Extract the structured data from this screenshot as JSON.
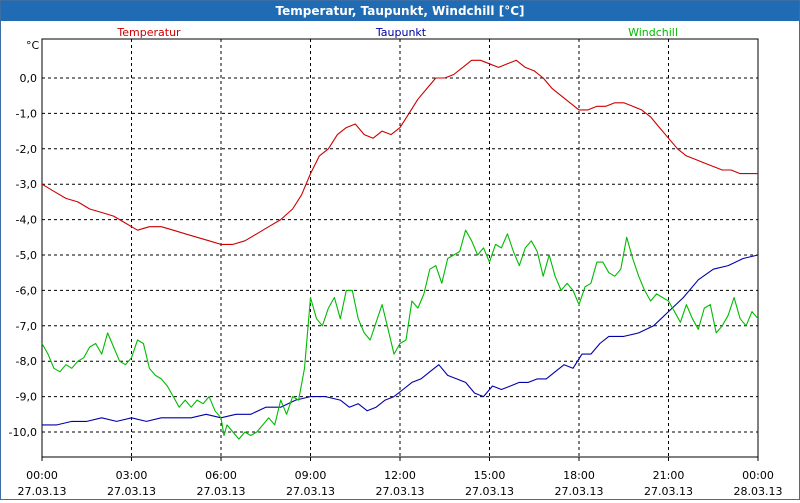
{
  "window": {
    "title": "Temperatur, Taupunkt, Windchill [°C]"
  },
  "colors": {
    "titlebar": "#1f6bb4",
    "temperatur": "#cc0000",
    "taupunkt": "#0000aa",
    "windchill": "#00bb00",
    "grid": "#000000",
    "axis_text": "#000000"
  },
  "chart_data": {
    "type": "line",
    "title": "Temperatur, Taupunkt, Windchill [°C]",
    "ylabel": "°C",
    "ylim": [
      -10.5,
      1.0
    ],
    "xlim": [
      0,
      24
    ],
    "grid": true,
    "y_ticks": [
      0,
      -1,
      -2,
      -3,
      -4,
      -5,
      -6,
      -7,
      -8,
      -9,
      -10
    ],
    "y_tick_labels": [
      "0,0",
      "-1,0",
      "-2,0",
      "-3,0",
      "-4,0",
      "-5,0",
      "-6,0",
      "-7,0",
      "-8,0",
      "-9,0",
      "-10,0"
    ],
    "x_ticks": [
      0,
      3,
      6,
      9,
      12,
      15,
      18,
      21,
      24
    ],
    "x_tick_labels": [
      [
        "00:00",
        "27.03.13"
      ],
      [
        "03:00",
        "27.03.13"
      ],
      [
        "06:00",
        "27.03.13"
      ],
      [
        "09:00",
        "27.03.13"
      ],
      [
        "12:00",
        "27.03.13"
      ],
      [
        "15:00",
        "27.03.13"
      ],
      [
        "18:00",
        "27.03.13"
      ],
      [
        "21:00",
        "27.03.13"
      ],
      [
        "00:00",
        "28.03.13"
      ]
    ],
    "series": [
      {
        "name": "Temperatur",
        "color": "#cc0000",
        "legend_position": "left",
        "points": [
          [
            0.0,
            -3.0
          ],
          [
            0.4,
            -3.2
          ],
          [
            0.8,
            -3.4
          ],
          [
            1.2,
            -3.5
          ],
          [
            1.6,
            -3.7
          ],
          [
            2.0,
            -3.8
          ],
          [
            2.4,
            -3.9
          ],
          [
            2.8,
            -4.1
          ],
          [
            3.2,
            -4.3
          ],
          [
            3.6,
            -4.2
          ],
          [
            4.0,
            -4.2
          ],
          [
            4.4,
            -4.3
          ],
          [
            4.8,
            -4.4
          ],
          [
            5.2,
            -4.5
          ],
          [
            5.6,
            -4.6
          ],
          [
            6.0,
            -4.7
          ],
          [
            6.4,
            -4.7
          ],
          [
            6.8,
            -4.6
          ],
          [
            7.2,
            -4.4
          ],
          [
            7.6,
            -4.2
          ],
          [
            8.0,
            -4.0
          ],
          [
            8.4,
            -3.7
          ],
          [
            8.7,
            -3.3
          ],
          [
            9.0,
            -2.7
          ],
          [
            9.3,
            -2.2
          ],
          [
            9.6,
            -2.0
          ],
          [
            9.9,
            -1.6
          ],
          [
            10.2,
            -1.4
          ],
          [
            10.5,
            -1.3
          ],
          [
            10.8,
            -1.6
          ],
          [
            11.1,
            -1.7
          ],
          [
            11.4,
            -1.5
          ],
          [
            11.7,
            -1.6
          ],
          [
            12.0,
            -1.4
          ],
          [
            12.3,
            -1.0
          ],
          [
            12.6,
            -0.6
          ],
          [
            12.9,
            -0.3
          ],
          [
            13.2,
            0.0
          ],
          [
            13.5,
            0.0
          ],
          [
            13.8,
            0.1
          ],
          [
            14.1,
            0.3
          ],
          [
            14.4,
            0.5
          ],
          [
            14.7,
            0.5
          ],
          [
            15.0,
            0.4
          ],
          [
            15.3,
            0.3
          ],
          [
            15.6,
            0.4
          ],
          [
            15.9,
            0.5
          ],
          [
            16.2,
            0.3
          ],
          [
            16.5,
            0.2
          ],
          [
            16.8,
            0.0
          ],
          [
            17.1,
            -0.3
          ],
          [
            17.4,
            -0.5
          ],
          [
            17.7,
            -0.7
          ],
          [
            18.0,
            -0.9
          ],
          [
            18.3,
            -0.9
          ],
          [
            18.6,
            -0.8
          ],
          [
            18.9,
            -0.8
          ],
          [
            19.2,
            -0.7
          ],
          [
            19.5,
            -0.7
          ],
          [
            19.8,
            -0.8
          ],
          [
            20.1,
            -0.9
          ],
          [
            20.4,
            -1.1
          ],
          [
            20.7,
            -1.4
          ],
          [
            21.0,
            -1.7
          ],
          [
            21.3,
            -2.0
          ],
          [
            21.6,
            -2.2
          ],
          [
            21.9,
            -2.3
          ],
          [
            22.2,
            -2.4
          ],
          [
            22.5,
            -2.5
          ],
          [
            22.8,
            -2.6
          ],
          [
            23.1,
            -2.6
          ],
          [
            23.4,
            -2.7
          ],
          [
            23.7,
            -2.7
          ],
          [
            24.0,
            -2.7
          ]
        ]
      },
      {
        "name": "Taupunkt",
        "color": "#0000aa",
        "legend_position": "center",
        "points": [
          [
            0.0,
            -9.8
          ],
          [
            0.5,
            -9.8
          ],
          [
            1.0,
            -9.7
          ],
          [
            1.5,
            -9.7
          ],
          [
            2.0,
            -9.6
          ],
          [
            2.5,
            -9.7
          ],
          [
            3.0,
            -9.6
          ],
          [
            3.5,
            -9.7
          ],
          [
            4.0,
            -9.6
          ],
          [
            4.5,
            -9.6
          ],
          [
            5.0,
            -9.6
          ],
          [
            5.5,
            -9.5
          ],
          [
            6.0,
            -9.6
          ],
          [
            6.5,
            -9.5
          ],
          [
            7.0,
            -9.5
          ],
          [
            7.5,
            -9.3
          ],
          [
            8.0,
            -9.3
          ],
          [
            8.5,
            -9.1
          ],
          [
            9.0,
            -9.0
          ],
          [
            9.5,
            -9.0
          ],
          [
            10.0,
            -9.1
          ],
          [
            10.3,
            -9.3
          ],
          [
            10.6,
            -9.2
          ],
          [
            10.9,
            -9.4
          ],
          [
            11.2,
            -9.3
          ],
          [
            11.5,
            -9.1
          ],
          [
            11.8,
            -9.0
          ],
          [
            12.1,
            -8.8
          ],
          [
            12.4,
            -8.6
          ],
          [
            12.7,
            -8.5
          ],
          [
            13.0,
            -8.3
          ],
          [
            13.3,
            -8.1
          ],
          [
            13.6,
            -8.4
          ],
          [
            13.9,
            -8.5
          ],
          [
            14.2,
            -8.6
          ],
          [
            14.5,
            -8.9
          ],
          [
            14.8,
            -9.0
          ],
          [
            15.1,
            -8.7
          ],
          [
            15.4,
            -8.8
          ],
          [
            15.7,
            -8.7
          ],
          [
            16.0,
            -8.6
          ],
          [
            16.3,
            -8.6
          ],
          [
            16.6,
            -8.5
          ],
          [
            16.9,
            -8.5
          ],
          [
            17.2,
            -8.3
          ],
          [
            17.5,
            -8.1
          ],
          [
            17.8,
            -8.2
          ],
          [
            18.1,
            -7.8
          ],
          [
            18.4,
            -7.8
          ],
          [
            18.7,
            -7.5
          ],
          [
            19.0,
            -7.3
          ],
          [
            19.5,
            -7.3
          ],
          [
            20.0,
            -7.2
          ],
          [
            20.5,
            -7.0
          ],
          [
            21.0,
            -6.6
          ],
          [
            21.5,
            -6.2
          ],
          [
            22.0,
            -5.7
          ],
          [
            22.5,
            -5.4
          ],
          [
            23.0,
            -5.3
          ],
          [
            23.5,
            -5.1
          ],
          [
            24.0,
            -5.0
          ]
        ]
      },
      {
        "name": "Windchill",
        "color": "#00bb00",
        "legend_position": "right",
        "points": [
          [
            0.0,
            -7.5
          ],
          [
            0.2,
            -7.8
          ],
          [
            0.4,
            -8.2
          ],
          [
            0.6,
            -8.3
          ],
          [
            0.8,
            -8.1
          ],
          [
            1.0,
            -8.2
          ],
          [
            1.2,
            -8.0
          ],
          [
            1.4,
            -7.9
          ],
          [
            1.6,
            -7.6
          ],
          [
            1.8,
            -7.5
          ],
          [
            2.0,
            -7.8
          ],
          [
            2.2,
            -7.2
          ],
          [
            2.4,
            -7.6
          ],
          [
            2.6,
            -8.0
          ],
          [
            2.8,
            -8.1
          ],
          [
            3.0,
            -7.9
          ],
          [
            3.2,
            -7.4
          ],
          [
            3.4,
            -7.5
          ],
          [
            3.6,
            -8.2
          ],
          [
            3.8,
            -8.4
          ],
          [
            4.0,
            -8.5
          ],
          [
            4.2,
            -8.7
          ],
          [
            4.4,
            -9.0
          ],
          [
            4.6,
            -9.3
          ],
          [
            4.8,
            -9.1
          ],
          [
            5.0,
            -9.3
          ],
          [
            5.2,
            -9.1
          ],
          [
            5.4,
            -9.2
          ],
          [
            5.6,
            -9.0
          ],
          [
            5.8,
            -9.4
          ],
          [
            6.0,
            -9.6
          ],
          [
            6.1,
            -10.1
          ],
          [
            6.2,
            -9.8
          ],
          [
            6.4,
            -10.0
          ],
          [
            6.6,
            -10.2
          ],
          [
            6.8,
            -10.0
          ],
          [
            7.0,
            -10.1
          ],
          [
            7.2,
            -10.0
          ],
          [
            7.4,
            -9.8
          ],
          [
            7.6,
            -9.6
          ],
          [
            7.8,
            -9.8
          ],
          [
            8.0,
            -9.1
          ],
          [
            8.2,
            -9.5
          ],
          [
            8.4,
            -9.0
          ],
          [
            8.6,
            -9.1
          ],
          [
            8.8,
            -8.2
          ],
          [
            9.0,
            -6.2
          ],
          [
            9.2,
            -6.8
          ],
          [
            9.4,
            -7.0
          ],
          [
            9.6,
            -6.5
          ],
          [
            9.8,
            -6.2
          ],
          [
            10.0,
            -6.8
          ],
          [
            10.2,
            -6.0
          ],
          [
            10.4,
            -6.0
          ],
          [
            10.6,
            -6.8
          ],
          [
            10.8,
            -7.2
          ],
          [
            11.0,
            -7.4
          ],
          [
            11.2,
            -6.9
          ],
          [
            11.4,
            -6.4
          ],
          [
            11.6,
            -7.1
          ],
          [
            11.8,
            -7.8
          ],
          [
            12.0,
            -7.5
          ],
          [
            12.2,
            -7.4
          ],
          [
            12.4,
            -6.3
          ],
          [
            12.6,
            -6.5
          ],
          [
            12.8,
            -6.1
          ],
          [
            13.0,
            -5.4
          ],
          [
            13.2,
            -5.3
          ],
          [
            13.4,
            -5.8
          ],
          [
            13.6,
            -5.1
          ],
          [
            13.8,
            -5.0
          ],
          [
            14.0,
            -4.9
          ],
          [
            14.2,
            -4.3
          ],
          [
            14.4,
            -4.6
          ],
          [
            14.6,
            -5.0
          ],
          [
            14.8,
            -4.8
          ],
          [
            15.0,
            -5.2
          ],
          [
            15.2,
            -4.7
          ],
          [
            15.4,
            -4.8
          ],
          [
            15.6,
            -4.4
          ],
          [
            15.8,
            -4.9
          ],
          [
            16.0,
            -5.3
          ],
          [
            16.2,
            -4.8
          ],
          [
            16.4,
            -4.6
          ],
          [
            16.6,
            -4.9
          ],
          [
            16.8,
            -5.6
          ],
          [
            17.0,
            -5.0
          ],
          [
            17.2,
            -5.6
          ],
          [
            17.4,
            -6.0
          ],
          [
            17.6,
            -5.8
          ],
          [
            17.8,
            -6.0
          ],
          [
            18.0,
            -6.4
          ],
          [
            18.2,
            -5.9
          ],
          [
            18.4,
            -5.8
          ],
          [
            18.6,
            -5.2
          ],
          [
            18.8,
            -5.2
          ],
          [
            19.0,
            -5.5
          ],
          [
            19.2,
            -5.6
          ],
          [
            19.4,
            -5.4
          ],
          [
            19.6,
            -4.5
          ],
          [
            19.8,
            -5.1
          ],
          [
            20.0,
            -5.6
          ],
          [
            20.2,
            -6.0
          ],
          [
            20.4,
            -6.3
          ],
          [
            20.6,
            -6.1
          ],
          [
            20.8,
            -6.2
          ],
          [
            21.0,
            -6.3
          ],
          [
            21.2,
            -6.6
          ],
          [
            21.4,
            -6.9
          ],
          [
            21.6,
            -6.4
          ],
          [
            21.8,
            -6.8
          ],
          [
            22.0,
            -7.1
          ],
          [
            22.2,
            -6.5
          ],
          [
            22.4,
            -6.4
          ],
          [
            22.6,
            -7.2
          ],
          [
            22.8,
            -7.0
          ],
          [
            23.0,
            -6.7
          ],
          [
            23.2,
            -6.2
          ],
          [
            23.4,
            -6.8
          ],
          [
            23.6,
            -7.0
          ],
          [
            23.8,
            -6.6
          ],
          [
            24.0,
            -6.8
          ]
        ]
      }
    ]
  }
}
